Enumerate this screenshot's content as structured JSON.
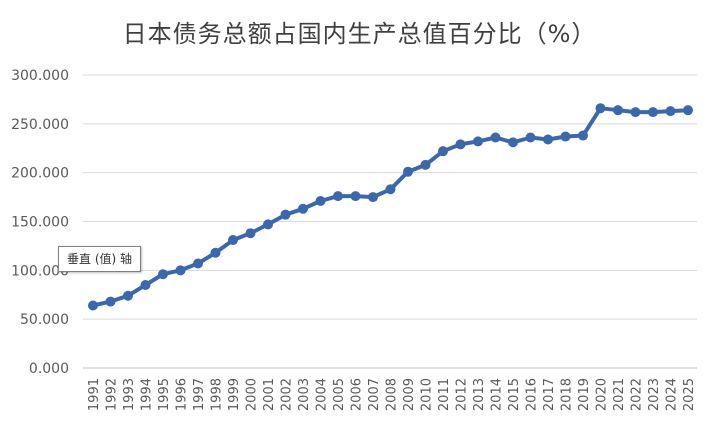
{
  "chart_data": {
    "type": "line",
    "title": "日本债务总额占国内生产总值百分比（%）",
    "x": [
      "1991",
      "1992",
      "1993",
      "1994",
      "1995",
      "1996",
      "1997",
      "1998",
      "1999",
      "2000",
      "2001",
      "2002",
      "2003",
      "2004",
      "2005",
      "2006",
      "2007",
      "2008",
      "2009",
      "2010",
      "2011",
      "2012",
      "2013",
      "2014",
      "2015",
      "2016",
      "2017",
      "2018",
      "2019",
      "2020",
      "2021",
      "2022",
      "2023",
      "2024",
      "2025"
    ],
    "series": [
      {
        "values": [
          64,
          68,
          74,
          85,
          96,
          100,
          107,
          118,
          131,
          138,
          147,
          157,
          163,
          171,
          176,
          176,
          175,
          183,
          201,
          208,
          222,
          229,
          232,
          236,
          231,
          236,
          234,
          237,
          238,
          266,
          264,
          262,
          262,
          263,
          264
        ]
      }
    ],
    "yticks": [
      "0.000",
      "50.000",
      "100.000",
      "150.000",
      "200.000",
      "250.000",
      "300.000"
    ],
    "ylim": [
      0,
      300
    ],
    "grid": true,
    "line_color": "#3b67ad",
    "gridline_color": "#d9d9d9",
    "tooltip_text": "垂直 (值) 轴"
  }
}
